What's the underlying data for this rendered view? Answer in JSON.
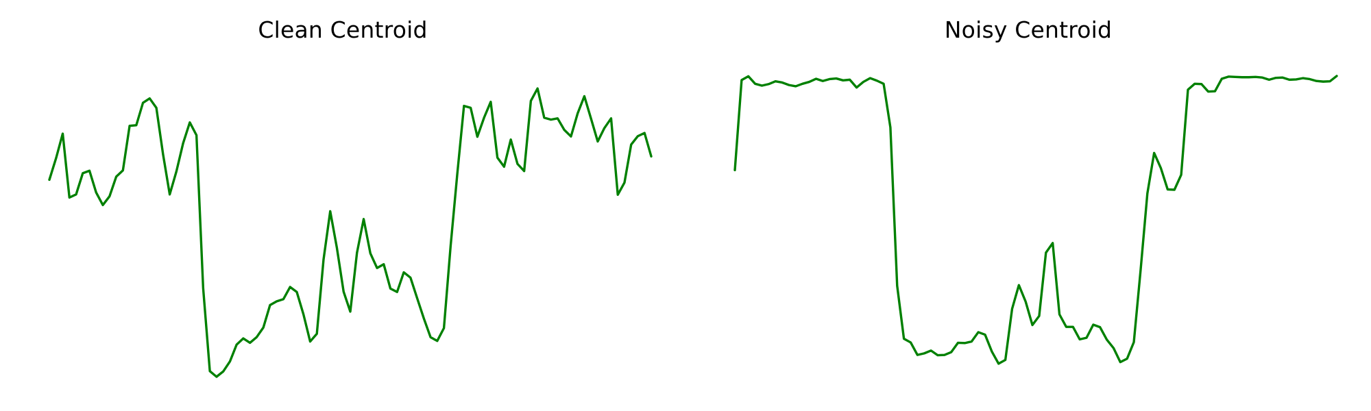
{
  "chart_data": [
    {
      "type": "line",
      "title": "Clean Centroid",
      "xlabel": "",
      "ylabel": "",
      "axes_visible": false,
      "grid": false,
      "legend": "none",
      "color": "#008000",
      "ylim": [
        0,
        1
      ],
      "series": [
        {
          "values": [
            0.632,
            0.701,
            0.78,
            0.575,
            0.585,
            0.653,
            0.661,
            0.591,
            0.551,
            0.579,
            0.642,
            0.662,
            0.805,
            0.807,
            0.879,
            0.893,
            0.863,
            0.714,
            0.585,
            0.659,
            0.749,
            0.816,
            0.775,
            0.284,
            0.018,
            0.0,
            0.017,
            0.049,
            0.103,
            0.123,
            0.109,
            0.127,
            0.158,
            0.23,
            0.242,
            0.249,
            0.288,
            0.272,
            0.2,
            0.113,
            0.138,
            0.376,
            0.531,
            0.413,
            0.273,
            0.209,
            0.398,
            0.506,
            0.396,
            0.349,
            0.361,
            0.283,
            0.272,
            0.335,
            0.318,
            0.252,
            0.187,
            0.127,
            0.115,
            0.156,
            0.419,
            0.651,
            0.869,
            0.863,
            0.77,
            0.831,
            0.882,
            0.703,
            0.674,
            0.761,
            0.683,
            0.66,
            0.885,
            0.925,
            0.831,
            0.825,
            0.829,
            0.792,
            0.771,
            0.845,
            0.9,
            0.828,
            0.755,
            0.798,
            0.829,
            0.584,
            0.623,
            0.745,
            0.772,
            0.782,
            0.707
          ]
        }
      ]
    },
    {
      "type": "line",
      "title": "Noisy Centroid",
      "xlabel": "",
      "ylabel": "",
      "axes_visible": false,
      "grid": false,
      "legend": "none",
      "color": "#008000",
      "ylim": [
        0,
        1
      ],
      "series": [
        {
          "values": [
            0.663,
            0.952,
            0.964,
            0.94,
            0.934,
            0.939,
            0.948,
            0.944,
            0.936,
            0.932,
            0.94,
            0.946,
            0.956,
            0.949,
            0.955,
            0.957,
            0.951,
            0.953,
            0.928,
            0.946,
            0.958,
            0.95,
            0.94,
            0.8,
            0.292,
            0.122,
            0.11,
            0.07,
            0.075,
            0.084,
            0.069,
            0.07,
            0.079,
            0.109,
            0.108,
            0.113,
            0.143,
            0.135,
            0.081,
            0.042,
            0.054,
            0.218,
            0.294,
            0.241,
            0.166,
            0.195,
            0.398,
            0.429,
            0.2,
            0.16,
            0.16,
            0.12,
            0.125,
            0.167,
            0.159,
            0.119,
            0.092,
            0.047,
            0.058,
            0.111,
            0.342,
            0.588,
            0.718,
            0.669,
            0.601,
            0.6,
            0.648,
            0.921,
            0.94,
            0.939,
            0.915,
            0.916,
            0.956,
            0.963,
            0.962,
            0.961,
            0.961,
            0.962,
            0.96,
            0.953,
            0.959,
            0.96,
            0.953,
            0.954,
            0.958,
            0.955,
            0.949,
            0.947,
            0.948,
            0.965
          ]
        }
      ]
    }
  ]
}
